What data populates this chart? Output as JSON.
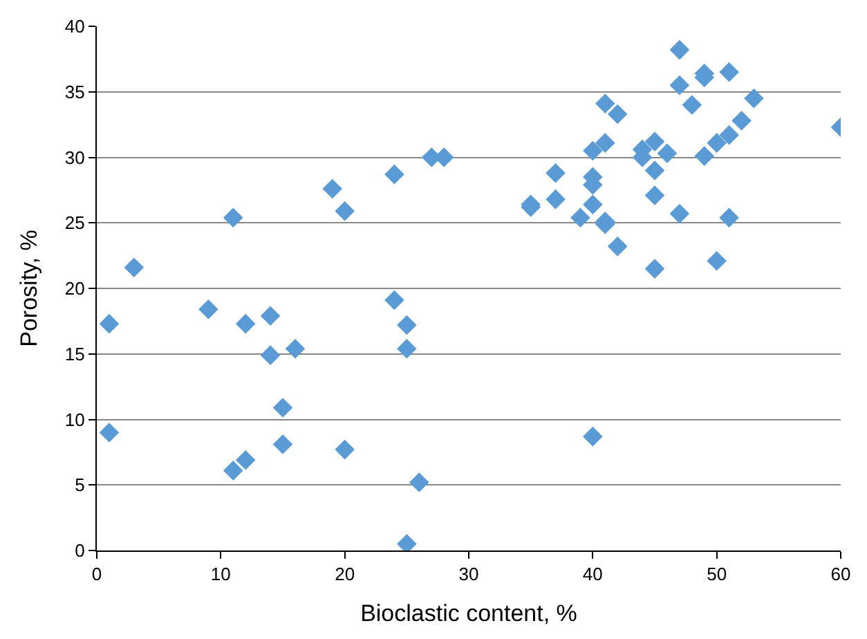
{
  "chart_data": {
    "type": "scatter",
    "xlabel": "Bioclastic content, %",
    "ylabel": "Porosity, %",
    "x": [
      1,
      1,
      3,
      9,
      11,
      12,
      11,
      12,
      14,
      14,
      16,
      15,
      15,
      19,
      20,
      20,
      24,
      24,
      25,
      25,
      26,
      25,
      27,
      28,
      35,
      35,
      37,
      37,
      39,
      40,
      40,
      40,
      40,
      40,
      41,
      41,
      41,
      41,
      42,
      42,
      44,
      44,
      45,
      45,
      45,
      45,
      46,
      47,
      47,
      47,
      48,
      49,
      49,
      49,
      50,
      50,
      51,
      51,
      51,
      52,
      53,
      60
    ],
    "series": [
      {
        "color": "#5b9bd5",
        "values": [
          17.3,
          9.0,
          21.6,
          18.4,
          25.4,
          17.3,
          6.1,
          6.9,
          17.9,
          14.9,
          15.4,
          10.9,
          8.1,
          27.6,
          25.9,
          7.7,
          28.7,
          19.1,
          17.2,
          15.4,
          5.2,
          0.5,
          30.0,
          30.0,
          26.4,
          26.2,
          28.8,
          26.8,
          25.4,
          30.5,
          28.5,
          27.9,
          26.4,
          8.7,
          34.1,
          31.1,
          25.1,
          24.9,
          33.3,
          23.2,
          30.6,
          30.0,
          31.2,
          29.0,
          27.1,
          21.5,
          30.3,
          38.2,
          35.5,
          25.7,
          34.0,
          36.4,
          36.1,
          30.1,
          31.1,
          22.1,
          36.5,
          31.7,
          25.4,
          32.8,
          34.5,
          32.3
        ]
      }
    ],
    "xlim": [
      0,
      60
    ],
    "xticks": [
      0,
      10,
      20,
      30,
      40,
      50,
      60
    ],
    "ylim": [
      0,
      40
    ],
    "yticks": [
      0,
      5,
      10,
      15,
      20,
      25,
      30,
      35,
      40
    ],
    "grid": "y",
    "marker": "diamond"
  }
}
